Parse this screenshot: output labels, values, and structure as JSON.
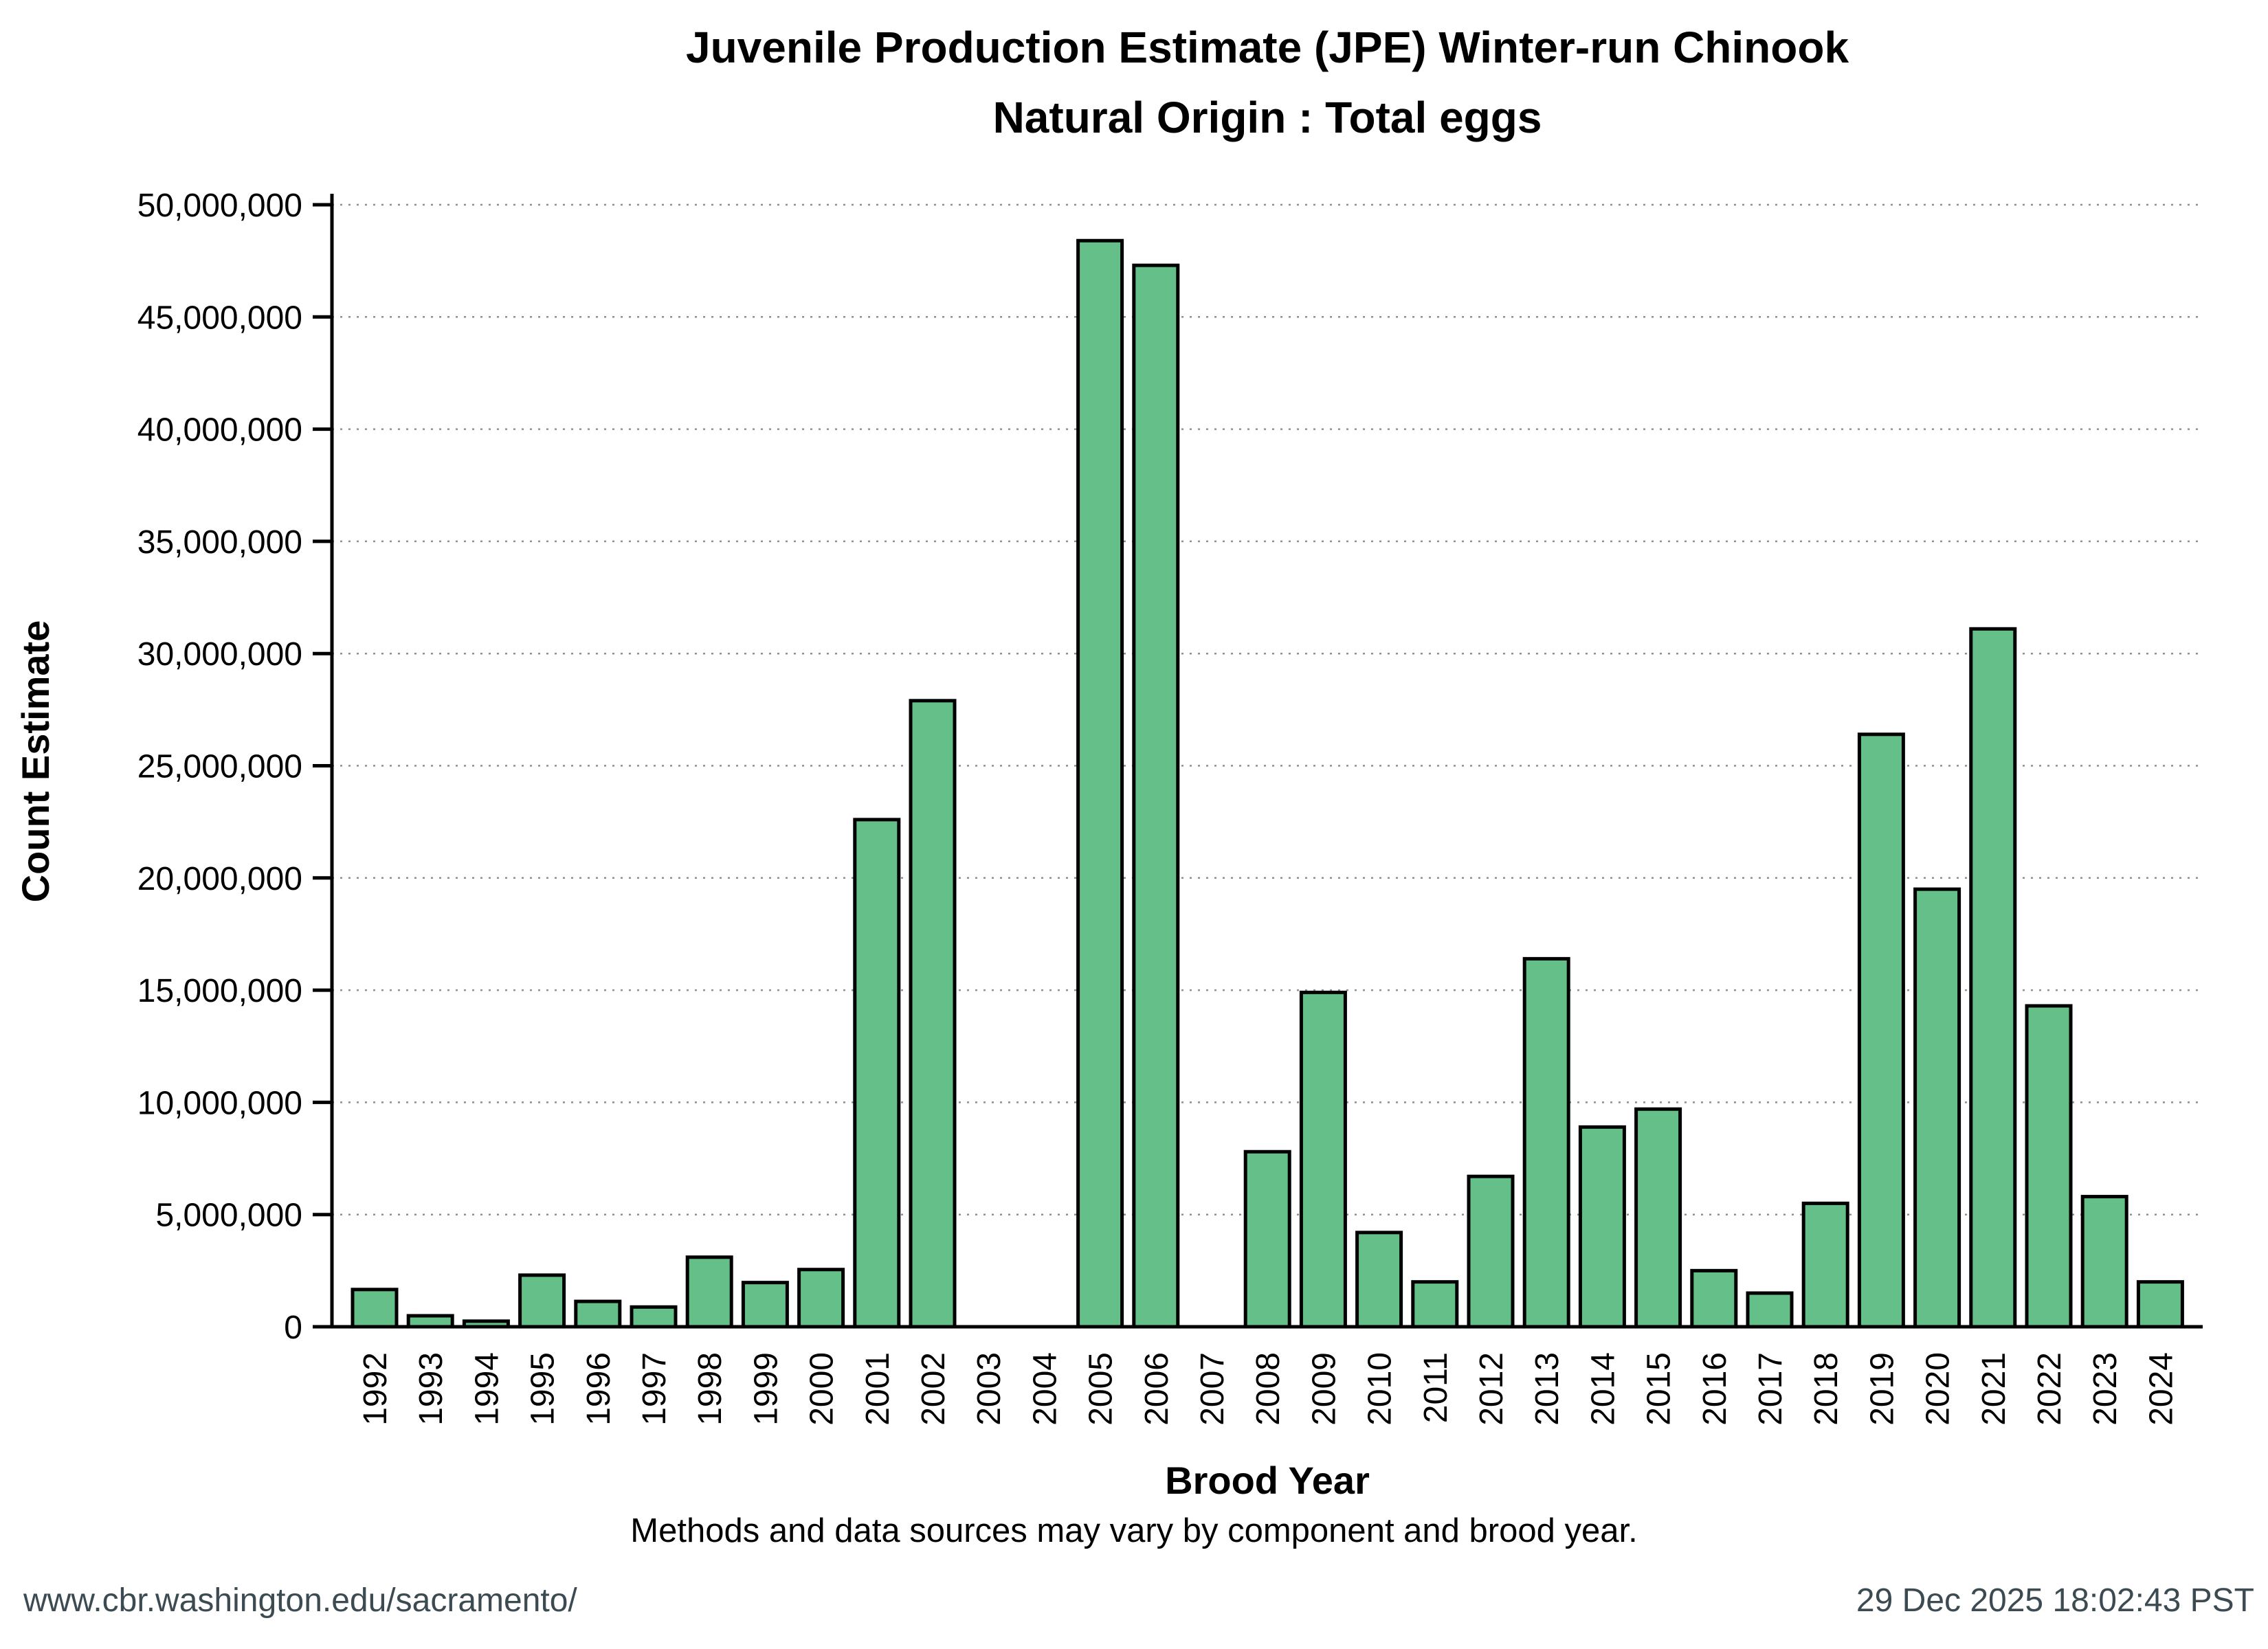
{
  "title": {
    "line1": "Juvenile Production Estimate (JPE) Winter-run Chinook",
    "line2": "Natural Origin : Total eggs"
  },
  "axes": {
    "ylabel": "Count Estimate",
    "xlabel": "Brood Year"
  },
  "footnote": "Methods and data sources may vary by component and brood year.",
  "footer": {
    "left": "www.cbr.washington.edu/sacramento/",
    "right": "29 Dec 2025 18:02:43 PST"
  },
  "colors": {
    "bar_fill": "#64BF88",
    "bar_edge": "#000000",
    "grid": "#8F8F8F",
    "axis": "#000000",
    "footer_text": "#3C4A52"
  },
  "chart_data": {
    "type": "bar",
    "title": "Juvenile Production Estimate (JPE) Winter-run Chinook — Natural Origin : Total eggs",
    "xlabel": "Brood Year",
    "ylabel": "Count Estimate",
    "ylim": [
      0,
      50000000
    ],
    "grid": "horizontal dotted lines every 5,000,000",
    "legend_position": "none",
    "categories": [
      1992,
      1993,
      1994,
      1995,
      1996,
      1997,
      1998,
      1999,
      2000,
      2001,
      2002,
      2003,
      2004,
      2005,
      2006,
      2007,
      2008,
      2009,
      2010,
      2011,
      2012,
      2013,
      2014,
      2015,
      2016,
      2017,
      2018,
      2019,
      2020,
      2021,
      2022,
      2023,
      2024
    ],
    "values": [
      1660000,
      490000,
      250000,
      2300000,
      1130000,
      880000,
      3100000,
      1970000,
      2550000,
      22600000,
      27900000,
      0,
      0,
      48400000,
      47300000,
      0,
      7800000,
      14900000,
      4200000,
      2000000,
      6700000,
      16400000,
      8900000,
      9700000,
      2500000,
      1500000,
      5500000,
      26400000,
      19500000,
      31100000,
      14300000,
      5800000,
      2000000
    ],
    "y_ticks": [
      {
        "value": 0,
        "label": "0"
      },
      {
        "value": 5000000,
        "label": "5,000,000"
      },
      {
        "value": 10000000,
        "label": "10,000,000"
      },
      {
        "value": 15000000,
        "label": "15,000,000"
      },
      {
        "value": 20000000,
        "label": "20,000,000"
      },
      {
        "value": 25000000,
        "label": "25,000,000"
      },
      {
        "value": 30000000,
        "label": "30,000,000"
      },
      {
        "value": 35000000,
        "label": "35,000,000"
      },
      {
        "value": 40000000,
        "label": "40,000,000"
      },
      {
        "value": 45000000,
        "label": "45,000,000"
      },
      {
        "value": 50000000,
        "label": "50,000,000"
      }
    ]
  }
}
